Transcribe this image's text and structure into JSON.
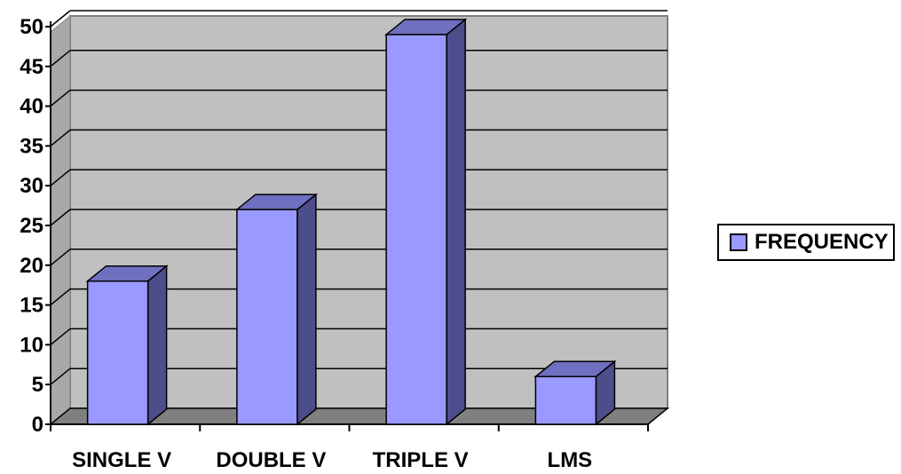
{
  "chart_data": {
    "type": "bar",
    "title": "",
    "xlabel": "",
    "ylabel": "",
    "categories": [
      "SINGLE V",
      "DOUBLE V",
      "TRIPLE V",
      "LMS"
    ],
    "series": [
      {
        "name": "FREQUENCY",
        "values": [
          18,
          27,
          49,
          6
        ]
      }
    ],
    "ylim": [
      0,
      50
    ],
    "yticks": [
      0,
      5,
      10,
      15,
      20,
      25,
      30,
      35,
      40,
      45,
      50
    ],
    "grid": true,
    "legend_position": "right",
    "style": "3d-column",
    "colors": {
      "bar_front": "#9999FF",
      "bar_side": "#4D4D8C",
      "bar_top": "#7070C0",
      "wall": "#C0C0C0",
      "floor": "#808080"
    }
  }
}
